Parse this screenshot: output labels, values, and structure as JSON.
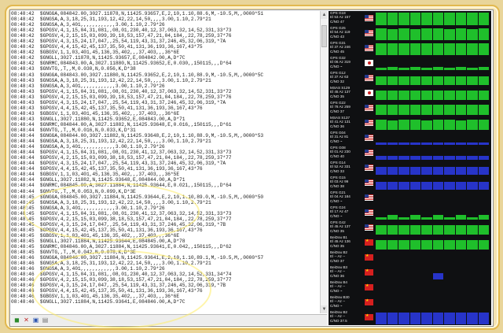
{
  "log": {
    "lines": [
      "08:48:42  $GNGGA,084842.00,3027.11878,N,11425.93657,E,2,10,1.10,88.6,M,-10.5,M,,0000*51",
      "08:48:42  $GNGSA,A,3,18,25,31,193,12,42,22,14,50,,,,3.00,1.10,2.79*21",
      "08:48:42  $GNGSA,A,3,401,,,,,,,,,,,,3.00,1.10,2.79*26",
      "08:48:42  $GPGSV,4,1,15,04,31,081,,08,01,230,40,12,37,063,32,14,52,331,33*73",
      "08:48:42  $GPGSV,4,2,15,15,03,099,39,18,53,157,47,21,04,184,,22,78,259,37*76",
      "08:48:42  $GPGSV,4,3,15,24,17,047,,25,54,119,43,31,37,246,45,32,06,319,*7A",
      "08:48:42  $GPGSV,4,4,15,42,45,137,35,50,41,131,36,193,36,167,43*75",
      "08:48:42  $GBGSV,1,1,03,401,45,136,35,402,,,37,403,,,36*6E",
      "08:48:42  $GNGLL,3027.11878,N,11425.93657,E,084842.00,A,D*7C",
      "08:48:42  $GNRMC,084843.00,A,3027.11880,N,11425.93652,E,0.030,,150115,,,D*64",
      "08:48:43  $GNVTG,,T,,M,0.030,N,0.056,K,D*38",
      "08:48:43  $GNGGA,084843.00,3027.11880,N,11425.93652,E,2,10,1.10,88.9,M,-10.5,M,,0000*5C",
      "08:48:43  $GNGSA,A,3,18,25,31,193,12,42,22,14,50,,,,3.00,1.10,2.79*21",
      "08:48:43  $GNGSA,A,3,401,,,,,,,,,,,,3.00,1.10,2.79*26",
      "08:48:43  $GPGSV,4,1,15,04,31,081,,08,01,230,40,12,37,063,32,14,52,331,33*72",
      "08:48:43  $GPGSV,4,2,15,15,03,099,39,18,53,157,47,21,04,184,,22,78,259,37*76",
      "08:48:43  $GPGSV,4,3,15,24,17,047,,25,54,119,43,31,37,246,45,32,06,319,*7A",
      "08:48:43  $GPGSV,4,4,15,42,45,137,35,50,41,131,36,193,36,167,43*76",
      "08:48:43  $GBGSV,1,1,03,401,45,136,35,402,,,37,403,,,36*6E",
      "08:48:43  $GNGLL,3027.11880,N,11425.93652,E,084843.00,A,D*71",
      "08:48:44  $GNRMC,084844.00,A,3027.11882,N,11425.93648,E,0.016,,150115,,,D*61",
      "08:48:44  $GNVTG,,T,,M,0.016,N,0.033,K,D*31",
      "08:48:44  $GNGGA,084844.00,3027.11882,N,11425.93648,E,2,10,1.10,88.9,M,-10.5,M,,0000*53",
      "08:48:44  $GNGSA,A,3,18,25,31,193,12,42,22,14,50,,,,3.00,1.10,2.79*21",
      "08:48:44  $GNGSA,A,3,401,,,,,,,,,,,,3.00,1.10,2.79*26",
      "08:48:44  $GPGSV,4,1,15,04,31,081,,08,01,230,41,12,37,063,32,14,52,331,33*73",
      "08:48:44  $GPGSV,4,2,15,15,03,099,38,18,53,157,47,21,04,184,,22,78,259,37*77",
      "08:48:44  $GPGSV,4,3,15,24,17,047,,25,54,119,43,31,37,246,45,32,06,319,*7A",
      "08:48:44  $GPGSV,4,4,15,42,45,137,35,50,41,131,36,193,36,167,43*76",
      "08:48:44  $GBGSV,1,1,03,401,45,136,35,402,,,37,403,,,36*5E",
      "08:48:44  $GNGLL,3027.11882,N,11425.93648,E,084844.00,A,D*71",
      "08:48:44  $GNRMC,084845.00,A,3027.11884,N,11425.93644,E,0.021,,150115,,,D*64",
      "08:48:44  $GNVTG,,T,,M,0.053,N,0.099,K,D*3E",
      "08:48:45  $GNGGA,084845.00,3027.11884,N,11425.93644,E,2,10,1.10,89.0,M,-10.5,M,,0000*50",
      "08:48:45  $GNGSA,A,3,18,25,31,193,12,42,22,14,50,,,,3.00,1.10,2.79*21",
      "08:48:45  $GNGSA,A,3,401,,,,,,,,,,,,3.00,1.10,2.79*26",
      "08:48:45  $GPGSV,4,1,15,04,31,081,,08,01,230,41,12,37,063,32,14,52,331,33*73",
      "08:48:45  $GPGSV,4,2,15,15,03,099,38,18,53,157,47,21,04,184,,22,78,259,37*77",
      "08:48:45  $GPGSV,4,3,15,24,17,047,,25,54,119,43,31,37,246,45,32,06,319,*7B",
      "08:48:45  $GPGSV,4,4,15,42,45,137,35,50,41,131,36,193,36,167,43*76",
      "08:48:45  $GBGSV,1,1,03,401,45,136,35,402,,,37,403,,,36*6E",
      "08:48:45  $GNGLL,3027.11884,N,11425.93644,E,084845.00,A,D*78",
      "08:48:45  $GNRMC,084846.00,A,3027.11884,N,11425.93641,E,0.042,,150115,,,D*62",
      "08:48:45  $GNVTG,,T,,M,0.042,N,0.078,K,D*3E",
      "08:48:46  $GNGGA,084846.00,3027.11884,N,11425.93641,E,2,10,1.10,89.1,M,-10.5,M,,0000*57",
      "08:48:46  $GNGSA,A,3,18,25,31,193,12,42,22,14,50,,,,3.00,1.10,2.79*21",
      "08:48:46  $GNGSA,A,3,401,,,,,,,,,,,,3.00,1.10,2.79*26",
      "08:48:46  $GPGSV,4,1,15,04,31,081,,08,01,230,40,12,37,063,32,14,52,331,34*74",
      "08:48:46  $GPGSV,4,2,15,15,03,099,38,18,53,157,47,21,04,184,,22,78,259,37*77",
      "08:48:46  $GPGSV,4,3,15,24,17,047,,25,54,119,43,31,37,246,45,32,06,319,*7B",
      "08:48:46  $GPGSV,4,4,15,42,45,137,35,50,41,131,36,193,36,167,43*76",
      "08:48:46  $GBGSV,1,1,03,401,45,136,35,402,,,37,403,,,36*6E",
      "08:48:46  $GNGLL,3027.11884,N,11425.93641,E,084846.00,A,D*7C"
    ]
  },
  "statusbar": {
    "icons": [
      "open-icon",
      "close-icon",
      "copy-icon",
      "log-icon"
    ]
  },
  "colors": {
    "bar_green": "#1fbf2b",
    "bar_blue": "#2734c9",
    "panel_bg": "#0f1012",
    "flag_us_stripe": "#cc2a2a",
    "flag_cn_red": "#d61f1f"
  },
  "satellites": [
    {
      "id": "GPS G18",
      "el": "El 53 Az 157",
      "cn": "C/NO 47",
      "flag": "us",
      "bar": "green",
      "levels": [
        0.95,
        0.94,
        0.95,
        0.94,
        0.95,
        0.95,
        0.94,
        0.95,
        0.95,
        0.94
      ]
    },
    {
      "id": "GPS G25",
      "el": "El 54 Az 119",
      "cn": "C/NO 43",
      "flag": "us",
      "bar": "green",
      "levels": [
        0.86,
        0.85,
        0.86,
        0.85,
        0.86,
        0.86,
        0.85,
        0.86,
        0.85,
        0.86
      ]
    },
    {
      "id": "GPS G31",
      "el": "El 37 Az 246",
      "cn": "C/NO 45",
      "flag": "us",
      "bar": "green",
      "levels": [
        0.9,
        0.9,
        0.89,
        0.9,
        0.9,
        0.9,
        0.9,
        0.89,
        0.9,
        0.9
      ]
    },
    {
      "id": "GPS G32",
      "el": "El 06 Az 319",
      "cn": "C/NO ~",
      "flag": "jp",
      "bar": "green",
      "levels": [
        0.2,
        0.25,
        0.2,
        0.22,
        0.2,
        0.22,
        0.2,
        0.25,
        0.2,
        0.22
      ]
    },
    {
      "id": "GPS G12",
      "el": "El 37 Az 63",
      "cn": "C/NO 32",
      "flag": "us",
      "bar": "green",
      "levels": [
        0.66,
        0.64,
        0.65,
        0.66,
        0.64,
        0.65,
        0.66,
        0.64,
        0.65,
        0.66
      ]
    },
    {
      "id": "MSAS S129",
      "el": "El 45 Az 137",
      "cn": "C/NO 35",
      "flag": "jp",
      "bar": "green",
      "levels": [
        0.72,
        0.7,
        0.72,
        0.72,
        0.7,
        0.72,
        0.72,
        0.7,
        0.72,
        0.72
      ]
    },
    {
      "id": "GPS G22",
      "el": "El 78 Az 259",
      "cn": "C/NO 37",
      "flag": "us",
      "bar": "green",
      "levels": [
        0.76,
        0.75,
        0.76,
        0.75,
        0.76,
        0.75,
        0.76,
        0.75,
        0.76,
        0.75
      ]
    },
    {
      "id": "MSAS S137",
      "el": "El 41 Az 131",
      "cn": "C/NO 36",
      "flag": "us",
      "bar": "green",
      "levels": [
        0.74,
        0.73,
        0.74,
        0.74,
        0.73,
        0.74,
        0.74,
        0.73,
        0.74,
        0.74
      ]
    },
    {
      "id": "GPS G04",
      "el": "El 31 Az 81",
      "cn": "C/NO ~",
      "flag": "us",
      "bar": "blue",
      "levels": [
        0.18,
        0.18,
        0.2,
        0.18,
        0.18,
        0.2,
        0.18,
        0.18,
        0.2,
        0.18
      ]
    },
    {
      "id": "GPS G08",
      "el": "El 01 Az 230",
      "cn": "C/NO 40",
      "flag": "us",
      "bar": "blue",
      "levels": [
        0.3,
        0.3,
        0.3,
        0.3,
        0.3,
        0.3,
        0.3,
        0.3,
        0.3,
        0.3
      ]
    },
    {
      "id": "GPS G14",
      "el": "El 52 Az 331",
      "cn": "C/NO 33",
      "flag": "us",
      "bar": "blue",
      "levels": [
        0.58,
        0.58,
        0.58,
        0.58,
        0.58,
        0.58,
        0.58,
        0.58,
        0.58,
        0.58
      ]
    },
    {
      "id": "GPS G15",
      "el": "El 03 Az 99",
      "cn": "C/NO 38",
      "flag": "us",
      "bar": "blue",
      "levels": [
        0.6,
        0.6,
        0.6,
        0.6,
        0.6,
        0.6,
        0.6,
        0.6,
        0.6,
        0.6
      ]
    },
    {
      "id": "GPS G21",
      "el": "El 04 Az 184",
      "cn": "C/NO ~",
      "flag": "us",
      "bar": "blue",
      "levels": [
        0,
        0,
        0,
        0,
        0,
        0,
        0,
        0,
        0,
        0
      ]
    },
    {
      "id": "GPS G24",
      "el": "El 17 Az 47",
      "cn": "C/NO ~",
      "flag": "us",
      "bar": "green",
      "levels": [
        0.2,
        0.35,
        0.2,
        0.35,
        0.2,
        0.35,
        0.2,
        0.35,
        0.2,
        0.35
      ]
    },
    {
      "id": "GPS G42",
      "el": "El 45 Az 137",
      "cn": "C/NO 35",
      "flag": "us",
      "bar": "green",
      "levels": [
        0.72,
        0.71,
        0.72,
        0.71,
        0.72,
        0.71,
        0.72,
        0.71,
        0.72,
        0.71
      ]
    },
    {
      "id": "BeiDou B1",
      "el": "El 45 Az 136",
      "cn": "C/NO 35",
      "flag": "cn",
      "bar": "green",
      "levels": [
        0.72,
        0.72,
        0.72,
        0.72,
        0.72,
        0.72,
        0.72,
        0.72,
        0.72,
        0.72
      ]
    },
    {
      "id": "BeiDou B2",
      "el": "El -- Az --",
      "cn": "C/NO 37",
      "flag": "cn",
      "bar": "blue",
      "levels": [
        0,
        0,
        0,
        0,
        0,
        0,
        0,
        0,
        0,
        0
      ]
    },
    {
      "id": "BeiDou B3",
      "el": "El -- Az --",
      "cn": "C/NO 36",
      "flag": "cn",
      "bar": "blue",
      "levels": [
        0,
        0,
        0,
        0,
        0,
        0.45,
        0,
        0,
        0,
        0
      ]
    },
    {
      "id": "BeiDou B4",
      "el": "El -- Az --",
      "cn": "C/NO ~",
      "flag": "cn",
      "bar": "blue",
      "levels": [
        0,
        0,
        0,
        0,
        0,
        0,
        0,
        0,
        0,
        0
      ]
    },
    {
      "id": "BeiDou B30",
      "el": "El -- Az --",
      "cn": "C/NO ~",
      "flag": "cn",
      "bar": "blue",
      "levels": [
        0,
        0,
        0,
        0,
        0,
        0,
        0,
        0,
        0,
        0
      ]
    },
    {
      "id": "BeiDou B2",
      "el": "El -- Az --",
      "cn": "C/NO 37.5",
      "flag": "cn",
      "bar": "blue",
      "levels": [
        0.9,
        0.9,
        0.9,
        0.9,
        0.9,
        0.9,
        0.9,
        0.9,
        0.9,
        0.9
      ]
    }
  ]
}
